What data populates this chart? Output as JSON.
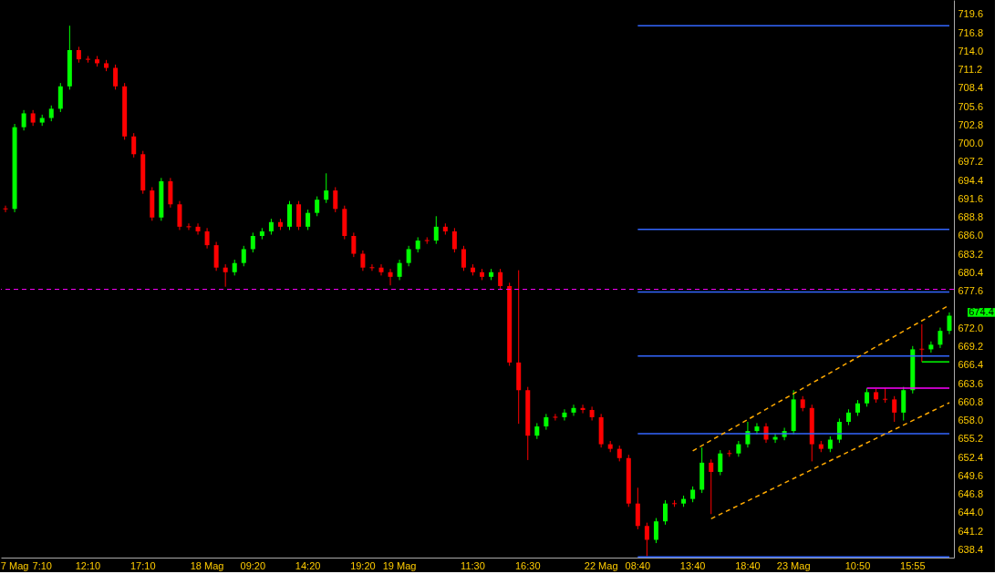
{
  "chart_data": {
    "type": "candlestick",
    "categories": [
      null,
      "7 Mag",
      null,
      null,
      "7:10",
      null,
      null,
      null,
      null,
      "12:10",
      null,
      null,
      null,
      null,
      null,
      "17:10",
      null,
      null,
      null,
      null,
      null,
      null,
      "18 Mag",
      null,
      null,
      null,
      null,
      "09:20",
      null,
      null,
      null,
      null,
      null,
      "14:20",
      null,
      null,
      null,
      null,
      null,
      "19:20",
      null,
      null,
      null,
      "19 Mag",
      null,
      null,
      null,
      null,
      null,
      null,
      null,
      "11:30",
      null,
      null,
      null,
      null,
      null,
      "16:30",
      null,
      null,
      null,
      null,
      null,
      null,
      null,
      "22 Mag",
      null,
      null,
      null,
      "08:40",
      null,
      null,
      null,
      null,
      null,
      "13:40",
      null,
      null,
      null,
      null,
      null,
      "18:40",
      null,
      null,
      null,
      null,
      "23 Mag",
      null,
      null,
      null,
      null,
      null,
      null,
      "10:50",
      null,
      null,
      null,
      null,
      null,
      "15:55",
      null,
      null,
      null,
      null
    ],
    "ohlc": [
      [
        690.1,
        690.6,
        689.6,
        690.1
      ],
      [
        690.1,
        703.0,
        689.6,
        702.5
      ],
      [
        702.5,
        705.1,
        702.0,
        704.6
      ],
      [
        704.6,
        705.1,
        702.7,
        703.2
      ],
      [
        703.2,
        704.4,
        702.7,
        703.9
      ],
      [
        703.9,
        705.8,
        703.4,
        705.3
      ],
      [
        705.3,
        709.2,
        704.8,
        708.7
      ],
      [
        708.7,
        717.9,
        708.2,
        714.2
      ],
      [
        714.2,
        714.7,
        712.3,
        712.8
      ],
      [
        712.8,
        713.3,
        712.3,
        712.8
      ],
      [
        712.8,
        713.3,
        711.7,
        712.2
      ],
      [
        712.2,
        712.7,
        711.0,
        711.5
      ],
      [
        711.5,
        712.0,
        708.2,
        708.7
      ],
      [
        708.7,
        709.2,
        700.6,
        701.1
      ],
      [
        701.1,
        701.6,
        697.9,
        698.4
      ],
      [
        698.4,
        698.9,
        692.4,
        692.9
      ],
      [
        692.9,
        693.4,
        688.3,
        688.8
      ],
      [
        688.8,
        694.8,
        688.3,
        694.3
      ],
      [
        694.3,
        694.8,
        690.3,
        690.8
      ],
      [
        690.8,
        691.3,
        686.9,
        687.4
      ],
      [
        687.4,
        687.9,
        686.9,
        687.4
      ],
      [
        687.4,
        687.9,
        686.2,
        686.7
      ],
      [
        686.7,
        687.2,
        684.1,
        684.6
      ],
      [
        684.6,
        685.1,
        680.7,
        681.2
      ],
      [
        681.2,
        681.7,
        678.3,
        680.5
      ],
      [
        680.5,
        682.4,
        680.0,
        681.9
      ],
      [
        681.9,
        684.5,
        681.4,
        684.0
      ],
      [
        684.0,
        686.5,
        683.5,
        686.0
      ],
      [
        686.0,
        687.2,
        685.5,
        686.7
      ],
      [
        686.7,
        688.6,
        686.2,
        688.1
      ],
      [
        688.1,
        688.6,
        686.9,
        687.4
      ],
      [
        687.4,
        691.3,
        686.9,
        690.8
      ],
      [
        690.8,
        691.3,
        686.9,
        687.4
      ],
      [
        687.4,
        690.0,
        686.9,
        689.5
      ],
      [
        689.5,
        692.0,
        689.0,
        691.5
      ],
      [
        691.5,
        695.5,
        691.0,
        692.9
      ],
      [
        692.9,
        693.4,
        689.6,
        690.1
      ],
      [
        690.1,
        690.6,
        685.5,
        686.0
      ],
      [
        686.0,
        686.5,
        682.8,
        683.3
      ],
      [
        683.3,
        683.8,
        680.7,
        681.2
      ],
      [
        681.2,
        681.7,
        680.7,
        681.2
      ],
      [
        681.2,
        681.7,
        680.0,
        680.5
      ],
      [
        680.5,
        681.0,
        678.5,
        679.8
      ],
      [
        679.8,
        682.4,
        679.3,
        681.9
      ],
      [
        681.9,
        684.5,
        681.4,
        684.0
      ],
      [
        684.0,
        685.8,
        683.5,
        685.3
      ],
      [
        685.3,
        685.8,
        684.8,
        685.3
      ],
      [
        685.3,
        689.0,
        684.8,
        687.4
      ],
      [
        687.4,
        687.9,
        686.2,
        686.7
      ],
      [
        686.7,
        687.2,
        683.5,
        684.0
      ],
      [
        684.0,
        684.5,
        680.7,
        681.2
      ],
      [
        681.2,
        681.7,
        680.0,
        680.5
      ],
      [
        680.5,
        681.0,
        679.3,
        679.8
      ],
      [
        679.8,
        681.0,
        679.3,
        680.5
      ],
      [
        680.5,
        681.0,
        677.9,
        678.4
      ],
      [
        678.4,
        678.9,
        666.3,
        666.8
      ],
      [
        666.8,
        680.8,
        657.5,
        662.6
      ],
      [
        662.6,
        663.1,
        652.0,
        655.7
      ],
      [
        655.7,
        657.6,
        655.2,
        657.1
      ],
      [
        657.1,
        659.0,
        656.6,
        658.5
      ],
      [
        658.5,
        659.0,
        658.0,
        658.5
      ],
      [
        658.5,
        659.7,
        658.0,
        659.2
      ],
      [
        659.2,
        660.4,
        658.7,
        659.9
      ],
      [
        659.9,
        660.4,
        659.1,
        659.6
      ],
      [
        659.6,
        660.1,
        658.0,
        658.5
      ],
      [
        658.5,
        659.0,
        653.9,
        654.4
      ],
      [
        654.4,
        654.9,
        653.2,
        653.7
      ],
      [
        653.7,
        654.2,
        651.8,
        652.3
      ],
      [
        652.3,
        652.8,
        644.9,
        645.4
      ],
      [
        645.4,
        647.8,
        641.5,
        642.0
      ],
      [
        642.0,
        642.5,
        637.4,
        639.9
      ],
      [
        639.9,
        643.2,
        639.4,
        642.7
      ],
      [
        642.7,
        645.9,
        642.2,
        645.4
      ],
      [
        645.4,
        645.9,
        644.9,
        645.4
      ],
      [
        645.4,
        646.6,
        644.9,
        646.1
      ],
      [
        646.1,
        648.0,
        645.6,
        647.5
      ],
      [
        647.5,
        653.9,
        647.0,
        651.6
      ],
      [
        651.6,
        652.1,
        643.8,
        650.2
      ],
      [
        650.2,
        653.5,
        649.7,
        653.0
      ],
      [
        653.0,
        653.5,
        652.5,
        653.0
      ],
      [
        653.0,
        654.9,
        652.5,
        654.4
      ],
      [
        654.4,
        657.8,
        653.9,
        656.4
      ],
      [
        656.4,
        657.6,
        655.9,
        657.1
      ],
      [
        657.1,
        657.6,
        654.6,
        655.1
      ],
      [
        655.1,
        656.0,
        654.6,
        655.5
      ],
      [
        655.5,
        656.9,
        655.0,
        656.4
      ],
      [
        656.4,
        662.6,
        655.9,
        661.2
      ],
      [
        661.2,
        661.7,
        659.4,
        659.9
      ],
      [
        659.9,
        660.4,
        651.8,
        654.4
      ],
      [
        654.4,
        654.9,
        653.2,
        653.7
      ],
      [
        653.7,
        655.6,
        653.2,
        655.1
      ],
      [
        655.1,
        658.3,
        654.6,
        657.8
      ],
      [
        657.8,
        659.7,
        657.3,
        659.2
      ],
      [
        659.2,
        661.1,
        658.7,
        660.6
      ],
      [
        660.6,
        662.9,
        660.1,
        662.3
      ],
      [
        662.3,
        662.8,
        660.7,
        661.2
      ],
      [
        661.2,
        662.9,
        660.7,
        661.2
      ],
      [
        661.2,
        661.7,
        657.8,
        659.2
      ],
      [
        659.2,
        663.1,
        658.0,
        662.6
      ],
      [
        662.6,
        669.3,
        662.1,
        668.8
      ],
      [
        668.8,
        672.6,
        666.9,
        668.8
      ],
      [
        668.8,
        670.0,
        668.3,
        669.5
      ],
      [
        669.5,
        672.1,
        669.0,
        671.6
      ],
      [
        671.6,
        674.4,
        671.1,
        673.9
      ]
    ],
    "colors": [
      "#ff0000",
      "#00ff00",
      "#00ff00",
      "#ff0000",
      "#00ff00",
      "#00ff00",
      "#00ff00",
      "#00ff00",
      "#ff0000",
      "#ff0000",
      "#ff0000",
      "#ff0000",
      "#ff0000",
      "#ff0000",
      "#ff0000",
      "#ff0000",
      "#ff0000",
      "#00ff00",
      "#ff0000",
      "#ff0000",
      "#ff0000",
      "#ff0000",
      "#ff0000",
      "#ff0000",
      "#ff0000",
      "#00ff00",
      "#00ff00",
      "#00ff00",
      "#00ff00",
      "#00ff00",
      "#ff0000",
      "#00ff00",
      "#ff0000",
      "#00ff00",
      "#00ff00",
      "#00ff00",
      "#ff0000",
      "#ff0000",
      "#ff0000",
      "#ff0000",
      "#ff0000",
      "#ff0000",
      "#ff0000",
      "#00ff00",
      "#00ff00",
      "#00ff00",
      "#ff0000",
      "#00ff00",
      "#ff0000",
      "#ff0000",
      "#ff0000",
      "#ff0000",
      "#ff0000",
      "#00ff00",
      "#ff0000",
      "#ff0000",
      "#ff0000",
      "#ff0000",
      "#00ff00",
      "#00ff00",
      "#ff0000",
      "#00ff00",
      "#00ff00",
      "#ff0000",
      "#ff0000",
      "#ff0000",
      "#ff0000",
      "#ff0000",
      "#ff0000",
      "#ff0000",
      "#ff0000",
      "#00ff00",
      "#00ff00",
      "#ff0000",
      "#00ff00",
      "#00ff00",
      "#00ff00",
      "#ff0000",
      "#00ff00",
      "#ff0000",
      "#00ff00",
      "#00ff00",
      "#00ff00",
      "#ff0000",
      "#00ff00",
      "#00ff00",
      "#00ff00",
      "#ff0000",
      "#ff0000",
      "#ff0000",
      "#00ff00",
      "#00ff00",
      "#00ff00",
      "#00ff00",
      "#00ff00",
      "#ff0000",
      "#ff0000",
      "#ff0000",
      "#00ff00",
      "#00ff00",
      "#ff0000",
      "#00ff00",
      "#00ff00",
      "#00ff00"
    ],
    "series": [
      {
        "type": "line",
        "color": "#3366ff",
        "line_style": "solid",
        "values": [
          null,
          null,
          null,
          null,
          null,
          null,
          null,
          null,
          null,
          null,
          null,
          null,
          null,
          null,
          null,
          null,
          null,
          null,
          null,
          null,
          null,
          null,
          null,
          null,
          null,
          null,
          null,
          null,
          null,
          null,
          null,
          null,
          null,
          null,
          null,
          null,
          null,
          null,
          null,
          null,
          null,
          null,
          null,
          null,
          null,
          null,
          null,
          null,
          null,
          null,
          null,
          null,
          null,
          null,
          null,
          null,
          null,
          null,
          null,
          null,
          null,
          null,
          null,
          null,
          null,
          null,
          null,
          null,
          null,
          717.9,
          null,
          null,
          null,
          null,
          null,
          null,
          null,
          null,
          null,
          null,
          null,
          null,
          null,
          null,
          null,
          null,
          null,
          null,
          null,
          null,
          null,
          null,
          null,
          null,
          null,
          null,
          null,
          null,
          null,
          null,
          null,
          null,
          null,
          717.9
        ]
      },
      {
        "type": "line",
        "color": "#3366ff",
        "line_style": "solid",
        "values": [
          null,
          null,
          null,
          null,
          null,
          null,
          null,
          null,
          null,
          null,
          null,
          null,
          null,
          null,
          null,
          null,
          null,
          null,
          null,
          null,
          null,
          null,
          null,
          null,
          null,
          null,
          null,
          null,
          null,
          null,
          null,
          null,
          null,
          null,
          null,
          null,
          null,
          null,
          null,
          null,
          null,
          null,
          null,
          null,
          null,
          null,
          null,
          null,
          null,
          null,
          null,
          null,
          null,
          null,
          null,
          null,
          null,
          null,
          null,
          null,
          null,
          null,
          null,
          null,
          null,
          null,
          null,
          null,
          null,
          687.0,
          null,
          null,
          null,
          null,
          null,
          null,
          null,
          null,
          null,
          null,
          null,
          null,
          null,
          null,
          null,
          null,
          null,
          null,
          null,
          null,
          null,
          null,
          null,
          null,
          null,
          null,
          null,
          null,
          null,
          null,
          null,
          null,
          null,
          687.0
        ]
      },
      {
        "type": "line",
        "color": "#3366ff",
        "line_style": "solid",
        "values": [
          null,
          null,
          null,
          null,
          null,
          null,
          null,
          null,
          null,
          null,
          null,
          null,
          null,
          null,
          null,
          null,
          null,
          null,
          null,
          null,
          null,
          null,
          null,
          null,
          null,
          null,
          null,
          null,
          null,
          null,
          null,
          null,
          null,
          null,
          null,
          null,
          null,
          null,
          null,
          null,
          null,
          null,
          null,
          null,
          null,
          null,
          null,
          null,
          null,
          null,
          null,
          null,
          null,
          null,
          null,
          null,
          null,
          null,
          null,
          null,
          null,
          null,
          null,
          null,
          null,
          null,
          null,
          null,
          null,
          677.5,
          null,
          null,
          null,
          null,
          null,
          null,
          null,
          null,
          null,
          null,
          null,
          null,
          null,
          null,
          null,
          null,
          null,
          null,
          null,
          null,
          null,
          null,
          null,
          null,
          null,
          null,
          null,
          null,
          null,
          null,
          null,
          null,
          null,
          677.5
        ]
      },
      {
        "type": "line",
        "color": "#3366ff",
        "line_style": "solid",
        "values": [
          null,
          null,
          null,
          null,
          null,
          null,
          null,
          null,
          null,
          null,
          null,
          null,
          null,
          null,
          null,
          null,
          null,
          null,
          null,
          null,
          null,
          null,
          null,
          null,
          null,
          null,
          null,
          null,
          null,
          null,
          null,
          null,
          null,
          null,
          null,
          null,
          null,
          null,
          null,
          null,
          null,
          null,
          null,
          null,
          null,
          null,
          null,
          null,
          null,
          null,
          null,
          null,
          null,
          null,
          null,
          null,
          null,
          null,
          null,
          null,
          null,
          null,
          null,
          null,
          null,
          null,
          null,
          null,
          null,
          667.8,
          null,
          null,
          null,
          null,
          null,
          null,
          null,
          null,
          null,
          null,
          null,
          null,
          null,
          null,
          null,
          null,
          null,
          null,
          null,
          null,
          null,
          null,
          null,
          null,
          null,
          null,
          null,
          null,
          null,
          null,
          null,
          null,
          null,
          667.8
        ]
      },
      {
        "type": "line",
        "color": "#3366ff",
        "line_style": "solid",
        "values": [
          null,
          null,
          null,
          null,
          null,
          null,
          null,
          null,
          null,
          null,
          null,
          null,
          null,
          null,
          null,
          null,
          null,
          null,
          null,
          null,
          null,
          null,
          null,
          null,
          null,
          null,
          null,
          null,
          null,
          null,
          null,
          null,
          null,
          null,
          null,
          null,
          null,
          null,
          null,
          null,
          null,
          null,
          null,
          null,
          null,
          null,
          null,
          null,
          null,
          null,
          null,
          null,
          null,
          null,
          null,
          null,
          null,
          null,
          null,
          null,
          null,
          null,
          null,
          null,
          null,
          null,
          null,
          null,
          null,
          656.0,
          null,
          null,
          null,
          null,
          null,
          null,
          null,
          null,
          null,
          null,
          null,
          null,
          null,
          null,
          null,
          null,
          null,
          null,
          null,
          null,
          null,
          null,
          null,
          null,
          null,
          null,
          null,
          null,
          null,
          null,
          null,
          null,
          null,
          656.0
        ]
      },
      {
        "type": "line",
        "color": "#3366ff",
        "line_style": "solid",
        "values": [
          null,
          null,
          null,
          null,
          null,
          null,
          null,
          null,
          null,
          null,
          null,
          null,
          null,
          null,
          null,
          null,
          null,
          null,
          null,
          null,
          null,
          null,
          null,
          null,
          null,
          null,
          null,
          null,
          null,
          null,
          null,
          null,
          null,
          null,
          null,
          null,
          null,
          null,
          null,
          null,
          null,
          null,
          null,
          null,
          null,
          null,
          null,
          null,
          null,
          null,
          null,
          null,
          null,
          null,
          null,
          null,
          null,
          null,
          null,
          null,
          null,
          null,
          null,
          null,
          null,
          null,
          null,
          null,
          null,
          637.3,
          null,
          null,
          null,
          null,
          null,
          null,
          null,
          null,
          null,
          null,
          null,
          null,
          null,
          null,
          null,
          null,
          null,
          null,
          null,
          null,
          null,
          null,
          null,
          null,
          null,
          null,
          null,
          null,
          null,
          null,
          null,
          null,
          null,
          637.3
        ]
      },
      {
        "type": "line",
        "color": "#ff00ff",
        "line_style": "solid",
        "values": [
          null,
          null,
          null,
          null,
          null,
          null,
          null,
          null,
          null,
          null,
          null,
          null,
          null,
          null,
          null,
          null,
          null,
          null,
          null,
          null,
          null,
          null,
          null,
          null,
          null,
          null,
          null,
          null,
          null,
          null,
          null,
          null,
          null,
          null,
          null,
          null,
          null,
          null,
          null,
          null,
          null,
          null,
          null,
          null,
          null,
          null,
          null,
          null,
          null,
          null,
          null,
          null,
          null,
          null,
          null,
          null,
          null,
          null,
          null,
          null,
          null,
          null,
          null,
          null,
          null,
          null,
          null,
          null,
          null,
          null,
          null,
          null,
          null,
          null,
          null,
          null,
          null,
          null,
          null,
          null,
          null,
          null,
          null,
          null,
          null,
          null,
          null,
          null,
          null,
          null,
          null,
          null,
          null,
          null,
          662.9,
          null,
          null,
          null,
          null,
          null,
          null,
          null,
          null,
          662.9
        ]
      },
      {
        "type": "line",
        "color": "#00ff00",
        "line_style": "solid",
        "values": [
          null,
          null,
          null,
          null,
          null,
          null,
          null,
          null,
          null,
          null,
          null,
          null,
          null,
          null,
          null,
          null,
          null,
          null,
          null,
          null,
          null,
          null,
          null,
          null,
          null,
          null,
          null,
          null,
          null,
          null,
          null,
          null,
          null,
          null,
          null,
          null,
          null,
          null,
          null,
          null,
          null,
          null,
          null,
          null,
          null,
          null,
          null,
          null,
          null,
          null,
          null,
          null,
          null,
          null,
          null,
          null,
          null,
          null,
          null,
          null,
          null,
          null,
          null,
          null,
          null,
          null,
          null,
          null,
          null,
          null,
          null,
          null,
          null,
          null,
          null,
          null,
          null,
          null,
          null,
          null,
          null,
          null,
          null,
          null,
          null,
          null,
          null,
          null,
          null,
          null,
          null,
          null,
          null,
          null,
          null,
          null,
          null,
          null,
          null,
          null,
          666.9,
          null,
          null,
          666.9
        ]
      },
      {
        "type": "line",
        "color": "#ffaa00",
        "line_style": "dashed",
        "values": [
          null,
          null,
          null,
          null,
          null,
          null,
          null,
          null,
          null,
          null,
          null,
          null,
          null,
          null,
          null,
          null,
          null,
          null,
          null,
          null,
          null,
          null,
          null,
          null,
          null,
          null,
          null,
          null,
          null,
          null,
          null,
          null,
          null,
          null,
          null,
          null,
          null,
          null,
          null,
          null,
          null,
          null,
          null,
          null,
          null,
          null,
          null,
          null,
          null,
          null,
          null,
          null,
          null,
          null,
          null,
          null,
          null,
          null,
          null,
          null,
          null,
          null,
          null,
          null,
          null,
          null,
          null,
          null,
          null,
          null,
          null,
          null,
          null,
          null,
          null,
          653.4,
          null,
          null,
          null,
          null,
          null,
          null,
          null,
          null,
          null,
          null,
          null,
          null,
          null,
          null,
          null,
          null,
          null,
          null,
          null,
          null,
          null,
          null,
          null,
          null,
          null,
          null,
          null,
          675.5
        ]
      },
      {
        "type": "line",
        "color": "#ffaa00",
        "line_style": "dashed",
        "values": [
          null,
          null,
          null,
          null,
          null,
          null,
          null,
          null,
          null,
          null,
          null,
          null,
          null,
          null,
          null,
          null,
          null,
          null,
          null,
          null,
          null,
          null,
          null,
          null,
          null,
          null,
          null,
          null,
          null,
          null,
          null,
          null,
          null,
          null,
          null,
          null,
          null,
          null,
          null,
          null,
          null,
          null,
          null,
          null,
          null,
          null,
          null,
          null,
          null,
          null,
          null,
          null,
          null,
          null,
          null,
          null,
          null,
          null,
          null,
          null,
          null,
          null,
          null,
          null,
          null,
          null,
          null,
          null,
          null,
          null,
          null,
          null,
          null,
          null,
          null,
          null,
          null,
          643.1,
          null,
          null,
          null,
          null,
          null,
          null,
          null,
          null,
          null,
          null,
          null,
          null,
          null,
          null,
          null,
          null,
          null,
          null,
          null,
          null,
          null,
          null,
          null,
          null,
          null,
          660.7
        ]
      }
    ],
    "ref_lines": [
      {
        "axis": "y",
        "value": 677.9,
        "color": "#ff00ff",
        "line_style": "dashed"
      }
    ],
    "annotations": [
      "674.4"
    ],
    "ylim": [
      637.2,
      721.8
    ],
    "yticks": [
      638.4,
      641.2,
      {
        "value": 644,
        "label": "644.0"
      },
      646.8,
      649.6,
      652.4,
      655.2,
      {
        "value": 658,
        "label": "658.0"
      },
      660.8,
      663.6,
      666.4,
      669.2,
      {
        "value": 672,
        "label": "672.0"
      },
      677.6,
      680.4,
      683.2,
      {
        "value": 686,
        "label": "686.0"
      },
      688.8,
      691.6,
      694.4,
      697.2,
      {
        "value": 700,
        "label": "700.0"
      },
      702.8,
      705.6,
      708.4,
      711.2,
      {
        "value": 714,
        "label": "714.0"
      },
      716.8,
      719.6
    ],
    "grid": false
  }
}
